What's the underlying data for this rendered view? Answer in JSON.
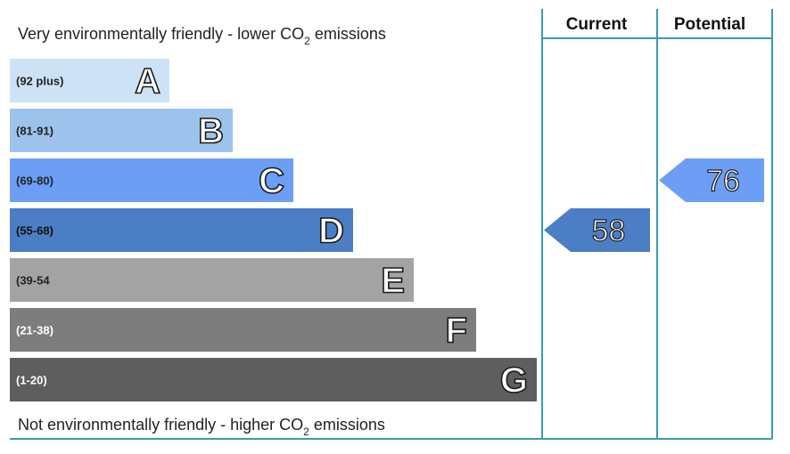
{
  "chart_data": {
    "type": "bar",
    "top_caption": "Very environmentally friendly - lower CO",
    "top_caption_sub": "2",
    "top_caption_end": " emissions",
    "bottom_caption": "Not environmentally friendly - higher CO",
    "bottom_caption_sub": "2",
    "bottom_caption_end": " emissions",
    "bands": [
      {
        "letter": "A",
        "range": "(92 plus)",
        "color": "#cde3f5",
        "range_color": "#222222"
      },
      {
        "letter": "B",
        "range": "(81-91)",
        "color": "#9dc3ec",
        "range_color": "#222222"
      },
      {
        "letter": "C",
        "range": "(69-80)",
        "color": "#6c9ef6",
        "range_color": "#222222"
      },
      {
        "letter": "D",
        "range": "(55-68)",
        "color": "#4c7ec5",
        "range_color": "#111111"
      },
      {
        "letter": "E",
        "range": "(39-54",
        "color": "#a3a3a3",
        "range_color": "#222222"
      },
      {
        "letter": "F",
        "range": "(21-38)",
        "color": "#7d7d7d",
        "range_color": "#ffffff"
      },
      {
        "letter": "G",
        "range": "(1-20)",
        "color": "#5e5e5e",
        "range_color": "#ffffff"
      }
    ],
    "columns": [
      {
        "header": "Current",
        "value": 58,
        "band": "D",
        "color": "#4c7ec5"
      },
      {
        "header": "Potential",
        "value": 76,
        "band": "C",
        "color": "#6c9ef6"
      }
    ],
    "frame_color": "#3a9bb0"
  }
}
